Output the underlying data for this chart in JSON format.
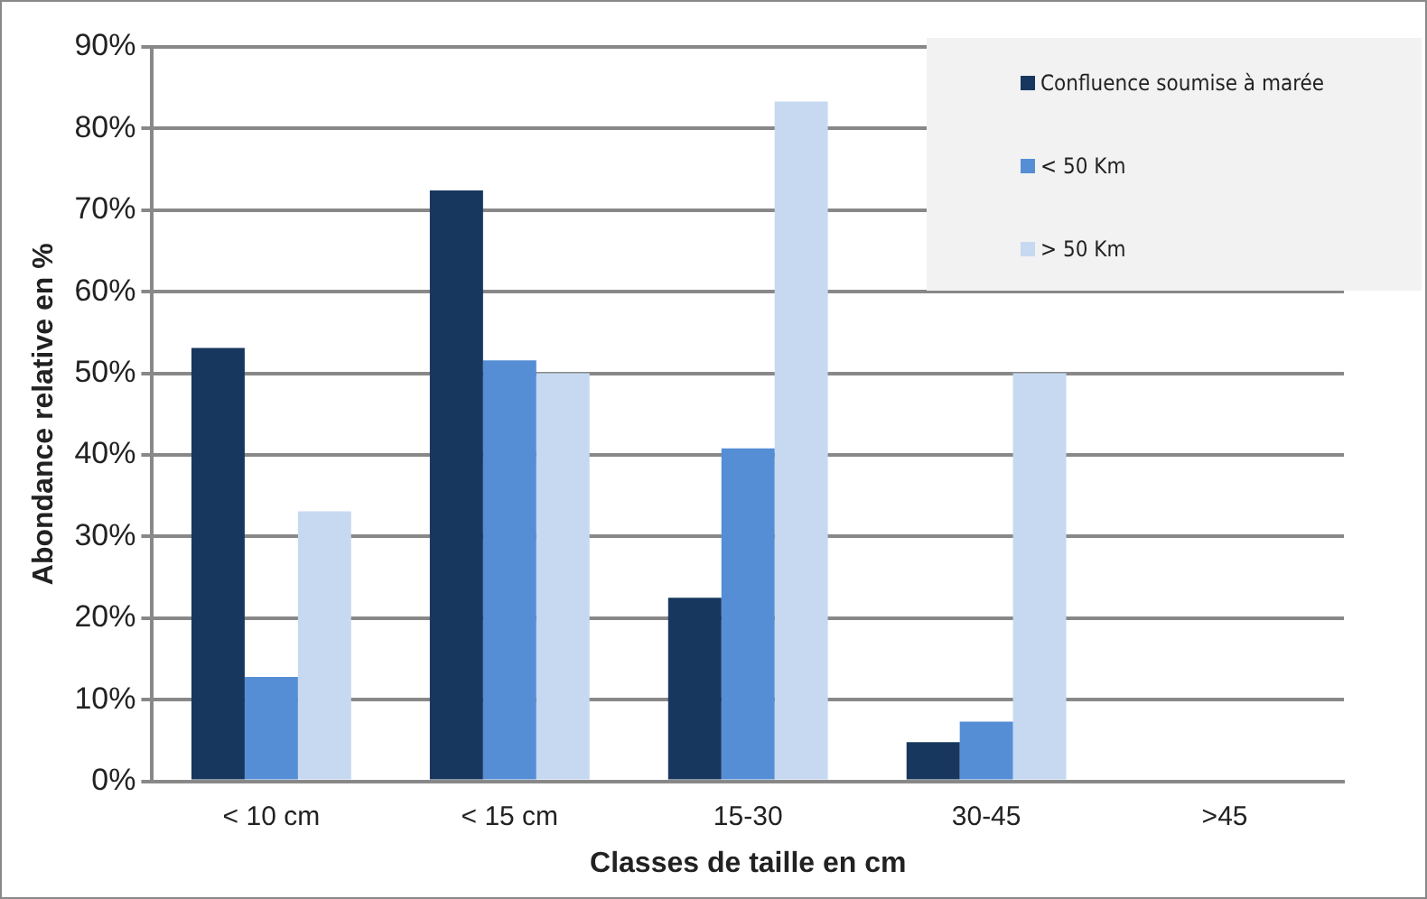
{
  "chart_data": {
    "type": "bar",
    "xlabel": "Classes de taille en cm",
    "ylabel": "Abondance relative en %",
    "categories": [
      "< 10 cm",
      "< 15 cm",
      "15-30",
      "30-45",
      ">45"
    ],
    "series": [
      {
        "name": "Confluence soumise à marée",
        "color": "#17375e",
        "values": [
          53.1,
          72.4,
          22.5,
          4.8,
          0
        ]
      },
      {
        "name": "< 50 Km",
        "color": "#558ed5",
        "values": [
          12.8,
          51.6,
          40.8,
          7.3,
          0
        ]
      },
      {
        "name": "> 50 Km",
        "color": "#c6d9f1",
        "values": [
          33.1,
          50,
          83.3,
          50,
          0
        ]
      }
    ],
    "ylim": [
      0,
      90
    ],
    "yticks": [
      {
        "value": 0,
        "label": "0%"
      },
      {
        "value": 10,
        "label": "10%"
      },
      {
        "value": 20,
        "label": "20%"
      },
      {
        "value": 30,
        "label": "30%"
      },
      {
        "value": 40,
        "label": "40%"
      },
      {
        "value": 50,
        "label": "50%"
      },
      {
        "value": 60,
        "label": "60%"
      },
      {
        "value": 70,
        "label": "70%"
      },
      {
        "value": 80,
        "label": "80%"
      },
      {
        "value": 90,
        "label": "90%"
      }
    ],
    "grid": "y",
    "legend": "top right"
  }
}
